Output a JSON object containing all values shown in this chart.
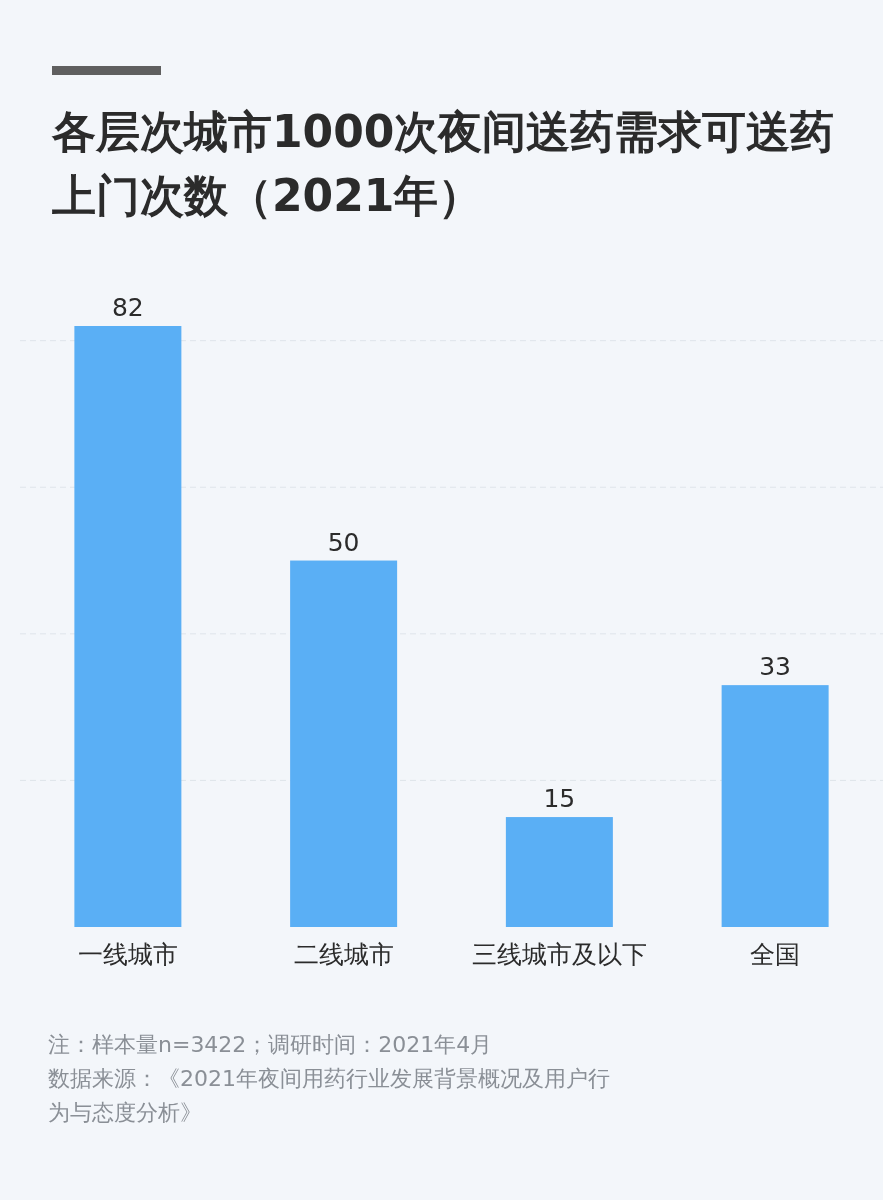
{
  "chart_data": {
    "type": "bar",
    "title": "各层次城市1000次夜间送药需求可送药上门次数（2021年）",
    "categories": [
      "一线城市",
      "二线城市",
      "三线城市及以下",
      "全国"
    ],
    "values": [
      82,
      50,
      15,
      33
    ],
    "color": "#5aaff5",
    "yticks": [
      {
        "value": 20,
        "label": null
      },
      {
        "value": 40,
        "label": null
      },
      {
        "value": 60,
        "label": null
      },
      {
        "value": 80,
        "label": null
      }
    ],
    "grid": "y",
    "tick_labels": "x",
    "data_labels": true,
    "annotations": [
      "注：样本量n=3422；调研时间：2021年4月",
      "数据来源：《2021年夜间用药行业发展背景概况及用户行为与态度分析》"
    ]
  }
}
